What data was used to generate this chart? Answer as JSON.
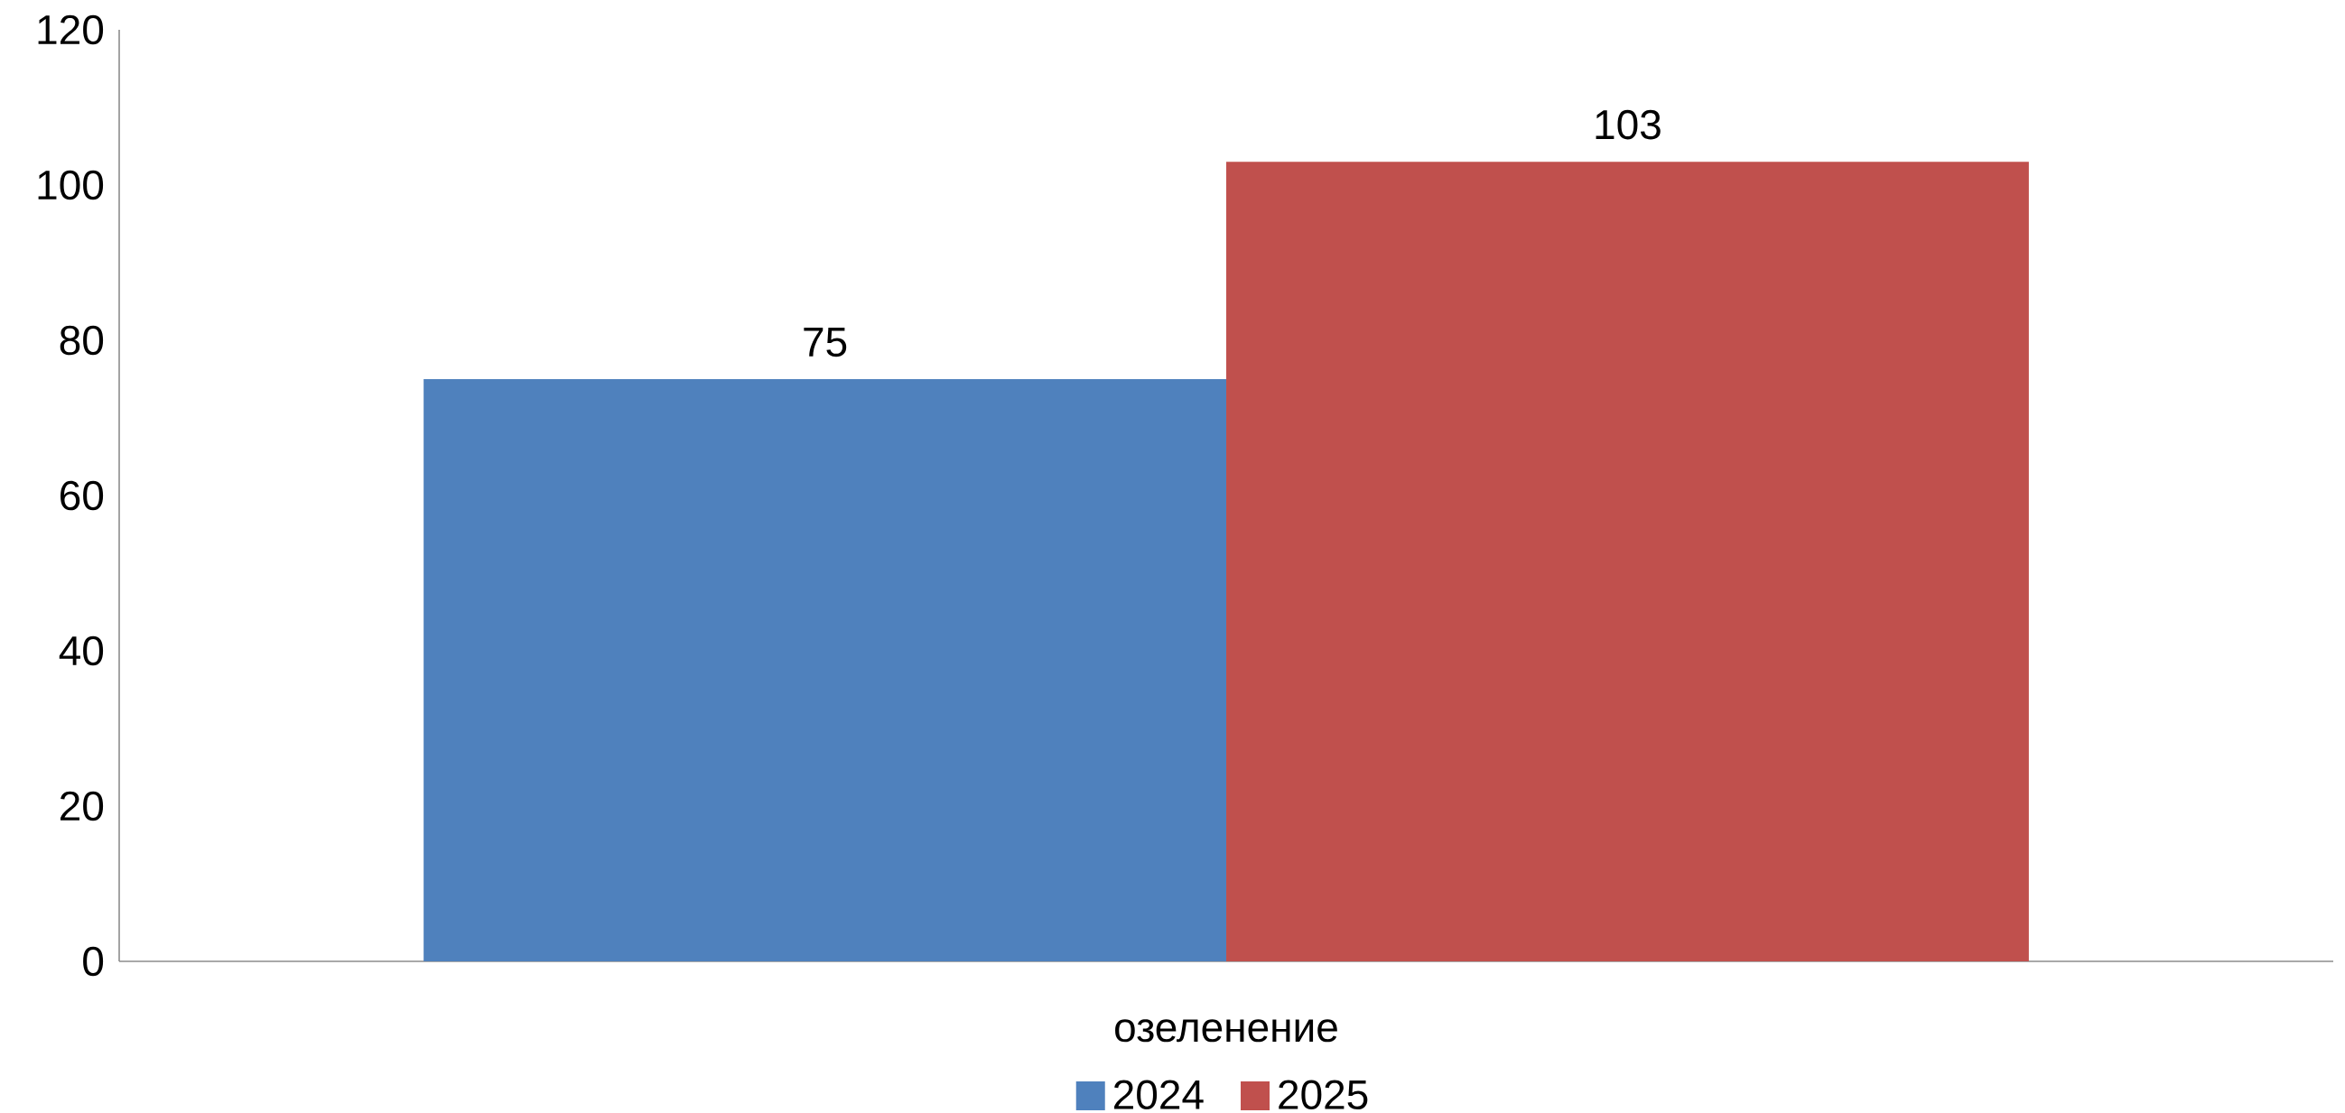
{
  "chart_data": {
    "type": "bar",
    "categories": [
      "озеленение"
    ],
    "series": [
      {
        "name": "2024",
        "color": "#4f81bd",
        "values": [
          75
        ]
      },
      {
        "name": "2025",
        "color": "#c0504d",
        "values": [
          103
        ]
      }
    ],
    "ylim": [
      0,
      120
    ],
    "yticks": [
      0,
      20,
      40,
      60,
      80,
      100,
      120
    ],
    "grid": false,
    "legend": "bottom",
    "data_labels": true
  }
}
